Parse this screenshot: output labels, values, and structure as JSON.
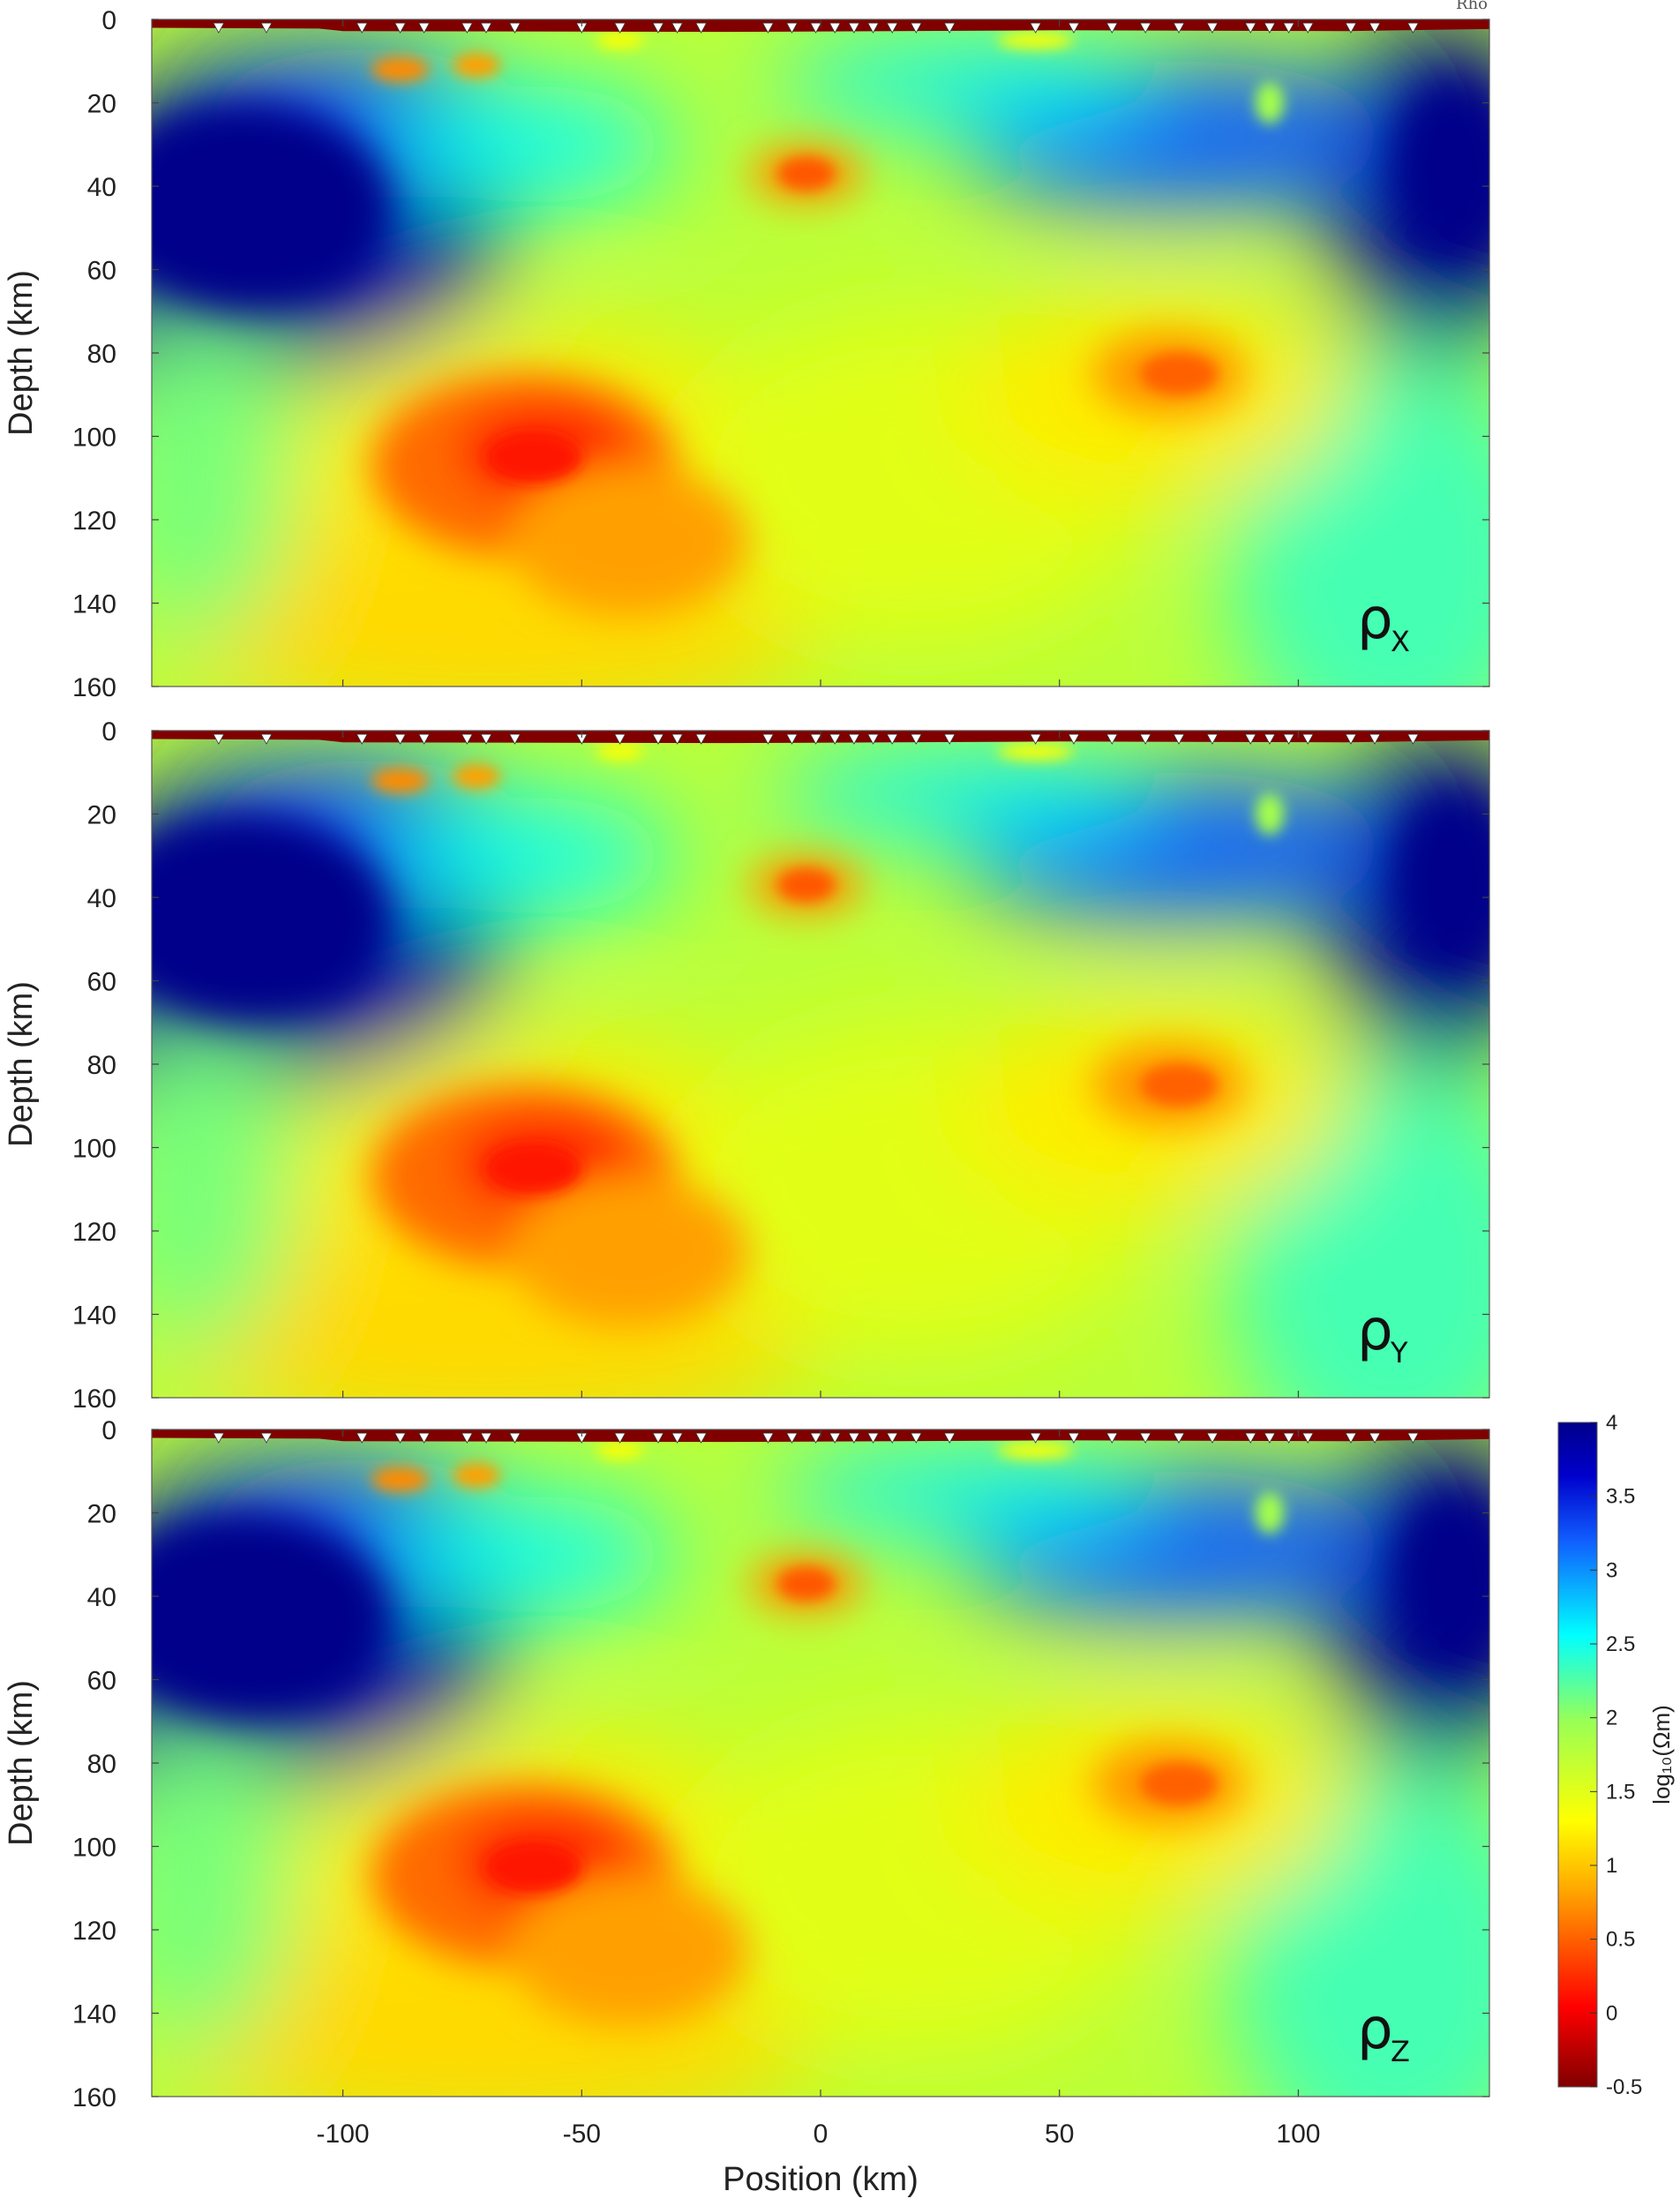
{
  "chart_data": {
    "type": "heatmap",
    "title": "",
    "panels": [
      {
        "label_main": "ρ",
        "label_sub": "X"
      },
      {
        "label_main": "ρ",
        "label_sub": "Y"
      },
      {
        "label_main": "ρ",
        "label_sub": "Z"
      }
    ],
    "xlabel": "Position (km)",
    "ylabel": "Depth (km)",
    "xlim": [
      -140,
      140
    ],
    "ylim": [
      0,
      160
    ],
    "y_reversed": true,
    "x_ticks": [
      -100,
      -50,
      0,
      50,
      100
    ],
    "y_ticks": [
      0,
      20,
      40,
      60,
      80,
      100,
      120,
      140,
      160
    ],
    "colorbar": {
      "label": "log₁₀(Ωm)",
      "range": [
        -0.5,
        4
      ],
      "ticks": [
        4,
        3.5,
        3,
        2.5,
        2,
        1.5,
        1,
        0.5,
        0,
        -0.5
      ],
      "colormap": "jet reversed (dark red = low, dark blue = high)"
    },
    "corner_text": "Rho",
    "stations_km": [
      -126,
      -116,
      -96,
      -88,
      -83,
      -74,
      -70,
      -64,
      -50,
      -42,
      -34,
      -30,
      -25,
      -11,
      -6,
      -1,
      3,
      7,
      11,
      15,
      20,
      27,
      45,
      53,
      61,
      68,
      75,
      82,
      90,
      94,
      98,
      102,
      111,
      116,
      124
    ],
    "features": [
      {
        "name": "left resistive block",
        "x": -125,
        "depth": 40,
        "log_rho": 3.9
      },
      {
        "name": "right resistive block",
        "x": 135,
        "depth": 35,
        "log_rho": 3.9
      },
      {
        "name": "mid-crust conductor",
        "x": -3,
        "depth": 37,
        "log_rho": 0.5
      },
      {
        "name": "deep conductor west",
        "x": -62,
        "depth": 105,
        "log_rho": 0.4
      },
      {
        "name": "deep conductor east",
        "x": 73,
        "depth": 85,
        "log_rho": 0.6
      },
      {
        "name": "shallow conductors",
        "x": -80,
        "depth": 12,
        "log_rho": 0.7
      }
    ]
  }
}
